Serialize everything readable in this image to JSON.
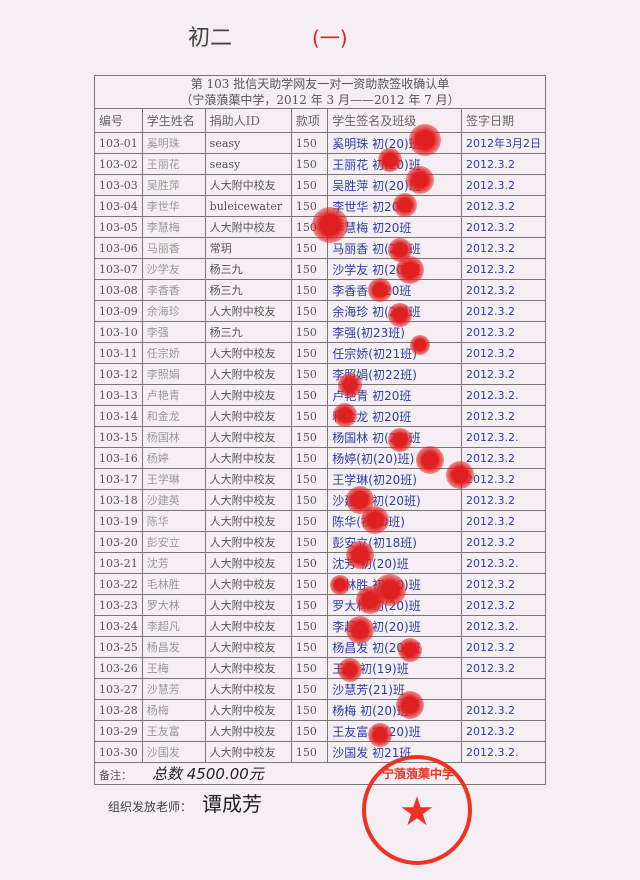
{
  "annotations": {
    "grade": "初二",
    "part": "(一)"
  },
  "title": "第 103 批信天助学网友一对一资助款签收确认单",
  "subtitle": "（宁蒗蒗蕖中学，2012 年 3 月——2012 年 7 月）",
  "columns": [
    "编号",
    "学生姓名",
    "捐助人ID",
    "款项",
    "学生签名及班级",
    "签字日期"
  ],
  "rows": [
    [
      "103-01",
      "奚明珠",
      "seasy",
      "150",
      "奚明珠 初(20)班",
      "2012年3月2日"
    ],
    [
      "103-02",
      "王丽花",
      "seasy",
      "150",
      "王丽花 初(20)班",
      "2012.3.2"
    ],
    [
      "103-03",
      "吴胜萍",
      "人大附中校友",
      "150",
      "吴胜萍 初(20)班",
      "2012.3.2"
    ],
    [
      "103-04",
      "李世华",
      "buleicewater",
      "150",
      "李世华 初20班",
      "2012.3.2"
    ],
    [
      "103-05",
      "李慧梅",
      "人大附中校友",
      "150",
      "李慧梅 初20班",
      "2012.3.2"
    ],
    [
      "103-06",
      "马丽香",
      "常玥",
      "150",
      "马丽香 初(20)班",
      "2012.3.2"
    ],
    [
      "103-07",
      "沙学友",
      "杨三九",
      "150",
      "沙学友 初(20)班",
      "2012.3.2"
    ],
    [
      "103-08",
      "李香香",
      "杨三九",
      "150",
      "李香香 初20班",
      "2012.3.2"
    ],
    [
      "103-09",
      "余海珍",
      "人大附中校友",
      "150",
      "余海珍 初(20)班",
      "2012.3.2"
    ],
    [
      "103-10",
      "李强",
      "杨三九",
      "150",
      "李强(初23班)",
      "2012.3.2"
    ],
    [
      "103-11",
      "任宗娇",
      "人大附中校友",
      "150",
      "任宗娇(初21班)",
      "2012.3.2"
    ],
    [
      "103-12",
      "李照娟",
      "人大附中校友",
      "150",
      "李照娟(初22班)",
      "2012.3.2"
    ],
    [
      "103-13",
      "卢艳青",
      "人大附中校友",
      "150",
      "卢艳青 初20班",
      "2012.3.2."
    ],
    [
      "103-14",
      "和金龙",
      "人大附中校友",
      "150",
      "和金龙 初20班",
      "2012.3.2"
    ],
    [
      "103-15",
      "杨国林",
      "人大附中校友",
      "150",
      "杨国林 初(20)班",
      "2012.3.2."
    ],
    [
      "103-16",
      "杨婷",
      "人大附中校友",
      "150",
      "杨婷(初(20)班)",
      "2012.3.2"
    ],
    [
      "103-17",
      "王学琳",
      "人大附中校友",
      "150",
      "王学琳(初20班)",
      "2012.3.2"
    ],
    [
      "103-18",
      "沙建英",
      "人大附中校友",
      "150",
      "沙建英 初(20班)",
      "2012.3.2"
    ],
    [
      "103-19",
      "陈华",
      "人大附中校友",
      "150",
      "陈华(初20班)",
      "2012.3.2"
    ],
    [
      "103-20",
      "彭安立",
      "人大附中校友",
      "150",
      "彭安立(初18班)",
      "2012.3.2"
    ],
    [
      "103-21",
      "沈芳",
      "人大附中校友",
      "150",
      "沈芳 初(20)班",
      "2012.3.2."
    ],
    [
      "103-22",
      "毛林胜",
      "人大附中校友",
      "150",
      "毛林胜 初(20)班",
      "2012.3.2"
    ],
    [
      "103-23",
      "罗大林",
      "人大附中校友",
      "150",
      "罗大林 初(20)班",
      "2012.3.2"
    ],
    [
      "103-24",
      "李超凡",
      "人大附中校友",
      "150",
      "李超凡 初(20)班",
      "2012.3.2."
    ],
    [
      "103-25",
      "杨昌发",
      "人大附中校友",
      "150",
      "杨昌发 初(20)班",
      "2012.3.2"
    ],
    [
      "103-26",
      "王梅",
      "人大附中校友",
      "150",
      "王梅 初(19)班",
      "2012.3.2"
    ],
    [
      "103-27",
      "沙慧芳",
      "人大附中校友",
      "150",
      "沙慧芳(21)班",
      ""
    ],
    [
      "103-28",
      "杨梅",
      "人大附中校友",
      "150",
      "杨梅 初(20)班",
      "2012.3.2"
    ],
    [
      "103-29",
      "王友富",
      "人大附中校友",
      "150",
      "王友富 初(20)班",
      "2012.3.2"
    ],
    [
      "103-30",
      "沙国发",
      "人大附中校友",
      "150",
      "沙国发 初21班",
      "2012.3.2."
    ]
  ],
  "remark_label": "备注：",
  "remark_value": "总数 4500.00元",
  "organizer_label": "组织发放老师：",
  "organizer_signature": "谭成芳",
  "stamp_text": "宁蒗蒗蕖中学",
  "colors": {
    "ink": "#2b3fa8",
    "stamp": "#e32222",
    "paper": "#f5eff3"
  }
}
